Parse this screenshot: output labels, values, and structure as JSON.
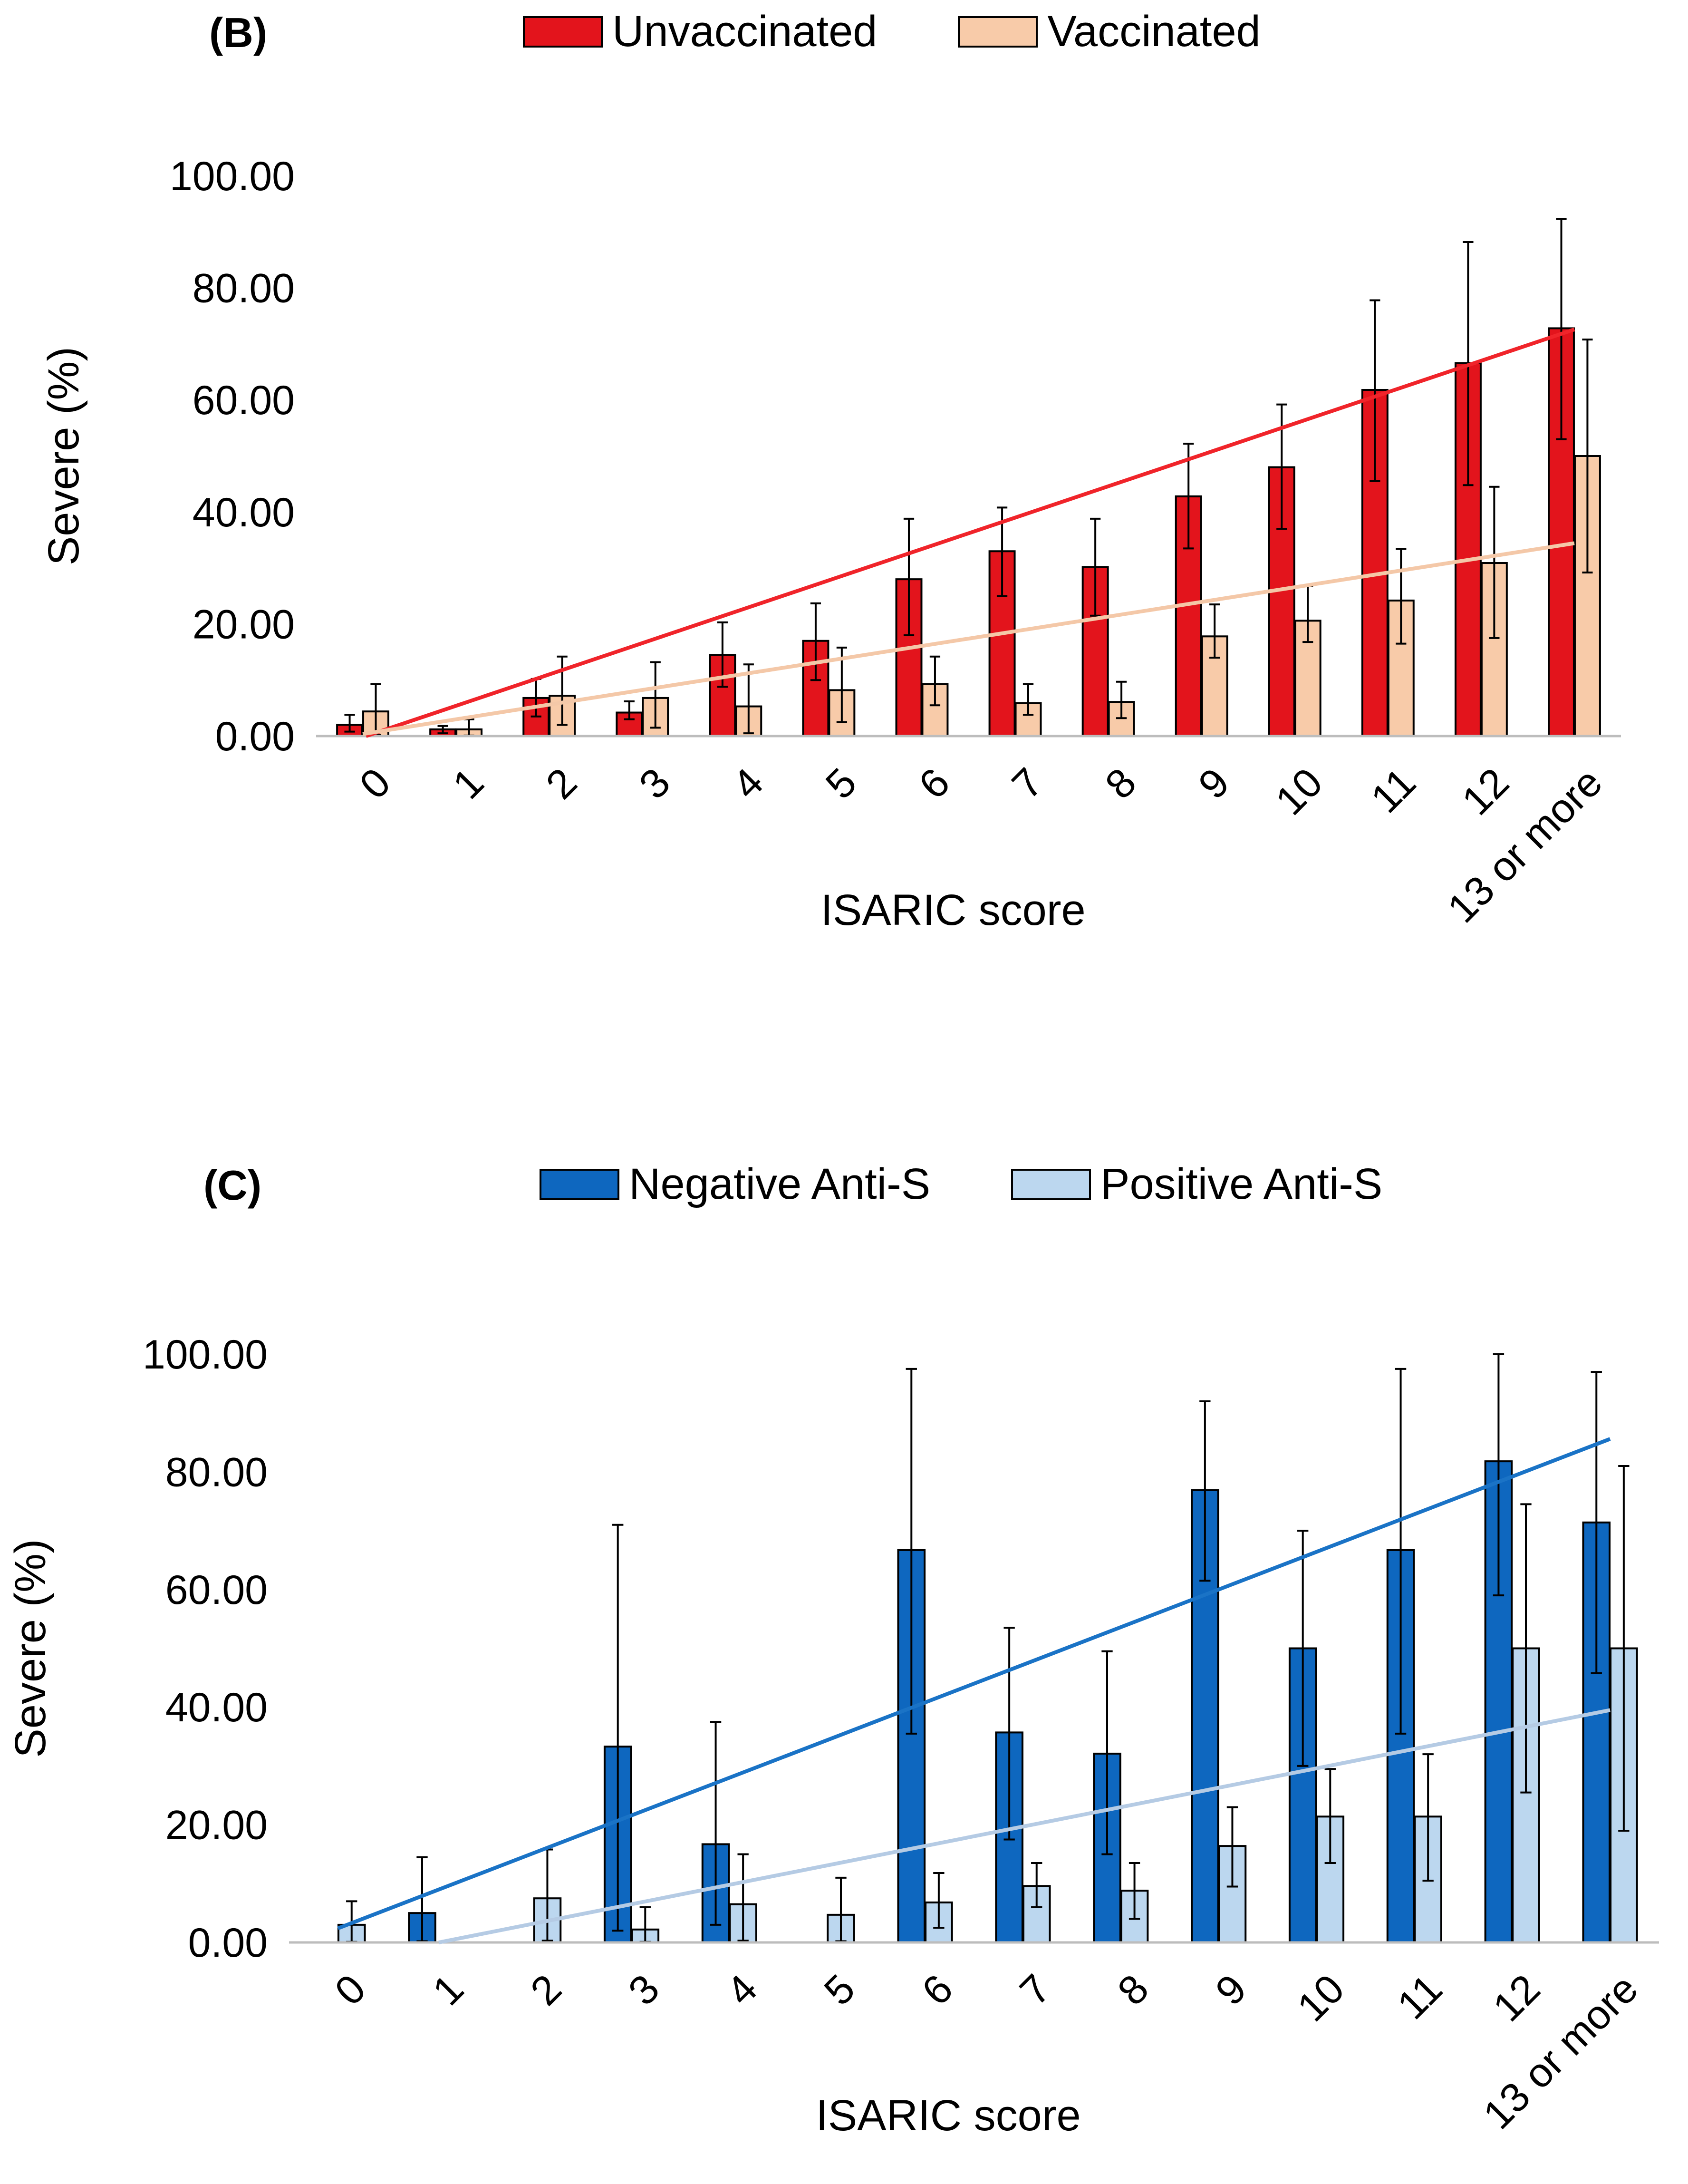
{
  "colors": {
    "unvaccinated": "#e3141c",
    "vaccinated": "#f8cba9",
    "negative": "#0e67bf",
    "positive": "#bcd7ef",
    "trend_unvaccinated": "#f0242a",
    "trend_vaccinated": "#f4c8a8",
    "trend_negative": "#1a73c6",
    "trend_positive": "#b5cbe4"
  },
  "chart_data": [
    {
      "type": "bar",
      "panel_label": "(B)",
      "title": "",
      "xlabel": "ISARIC score",
      "ylabel": "Severe (%)",
      "ylim": [
        0,
        100
      ],
      "yticks": [
        "0.00",
        "20.00",
        "40.00",
        "60.00",
        "80.00",
        "100.00"
      ],
      "categories": [
        "0",
        "1",
        "2",
        "3",
        "4",
        "5",
        "6",
        "7",
        "8",
        "9",
        "10",
        "11",
        "12",
        "13 or more"
      ],
      "series": [
        {
          "name": "Unvaccinated",
          "color_key": "unvaccinated",
          "values": [
            2.0,
            1.2,
            6.8,
            4.2,
            14.5,
            17.0,
            28.0,
            33.0,
            30.2,
            42.8,
            48.0,
            61.8,
            66.6,
            72.8
          ],
          "err_low": [
            0.8,
            0.5,
            3.5,
            3.0,
            8.8,
            10.0,
            18.0,
            25.0,
            21.5,
            33.5,
            37.0,
            45.5,
            44.8,
            53.0
          ],
          "err_high": [
            3.8,
            1.8,
            10.2,
            6.2,
            20.3,
            23.7,
            38.8,
            40.8,
            38.8,
            52.2,
            59.2,
            77.8,
            88.2,
            92.3
          ]
        },
        {
          "name": "Vaccinated",
          "color_key": "vaccinated",
          "values": [
            4.4,
            1.2,
            7.2,
            6.8,
            5.3,
            8.2,
            9.3,
            5.9,
            6.1,
            17.8,
            20.6,
            24.2,
            30.9,
            50.0
          ],
          "err_low": [
            0.2,
            0.1,
            2.0,
            1.5,
            0.5,
            2.5,
            5.5,
            3.8,
            3.2,
            14.0,
            16.8,
            16.5,
            17.5,
            29.2
          ],
          "err_high": [
            9.3,
            3.0,
            14.2,
            13.2,
            12.8,
            15.8,
            14.2,
            9.3,
            9.7,
            23.5,
            26.8,
            33.4,
            44.5,
            70.8
          ]
        }
      ],
      "trendlines": [
        {
          "series": "Unvaccinated",
          "color_key": "trend_unvaccinated",
          "slope": 5.6,
          "intercept": -5.8
        },
        {
          "series": "Vaccinated",
          "color_key": "trend_vaccinated",
          "slope": 2.62,
          "intercept": -2.25
        }
      ]
    },
    {
      "type": "bar",
      "panel_label": "(C)",
      "title": "",
      "xlabel": "ISARIC score",
      "ylabel": "Severe (%)",
      "ylim": [
        0,
        100
      ],
      "yticks": [
        "0.00",
        "20.00",
        "40.00",
        "60.00",
        "80.00",
        "100.00"
      ],
      "categories": [
        "0",
        "1",
        "2",
        "3",
        "4",
        "5",
        "6",
        "7",
        "8",
        "9",
        "10",
        "11",
        "12",
        "13 or more"
      ],
      "series": [
        {
          "name": "Negative Anti-S",
          "color_key": "negative",
          "values": [
            null,
            5.0,
            null,
            33.3,
            16.7,
            null,
            66.7,
            35.7,
            32.1,
            76.9,
            50.0,
            66.7,
            81.8,
            71.4
          ],
          "err_low": [
            null,
            0.2,
            null,
            2.0,
            3.0,
            null,
            35.5,
            17.5,
            15.0,
            61.5,
            30.0,
            35.5,
            59.0,
            45.8
          ],
          "err_high": [
            null,
            14.5,
            null,
            71.0,
            37.5,
            null,
            97.5,
            53.5,
            49.5,
            92.0,
            70.0,
            97.5,
            100,
            97.0
          ]
        },
        {
          "name": "Positive Anti-S",
          "color_key": "positive",
          "values": [
            3.0,
            null,
            7.5,
            2.2,
            6.5,
            4.7,
            6.8,
            9.6,
            8.8,
            16.4,
            21.4,
            21.4,
            50.0,
            50.0
          ],
          "err_low": [
            0.1,
            null,
            0.3,
            0.1,
            0.3,
            0.2,
            2.5,
            6.0,
            4.0,
            9.5,
            13.5,
            10.5,
            25.5,
            19.0
          ],
          "err_high": [
            7.0,
            null,
            15.8,
            6.0,
            15.0,
            11.0,
            11.8,
            13.5,
            13.5,
            23.0,
            29.5,
            32.0,
            74.5,
            81.0
          ]
        }
      ],
      "trendlines": [
        {
          "series": "Negative Anti-S",
          "color_key": "trend_negative",
          "slope": 6.4,
          "intercept": -4.0
        },
        {
          "series": "Positive Anti-S",
          "color_key": "trend_positive",
          "slope": 3.3,
          "intercept": -6.7
        }
      ]
    }
  ]
}
